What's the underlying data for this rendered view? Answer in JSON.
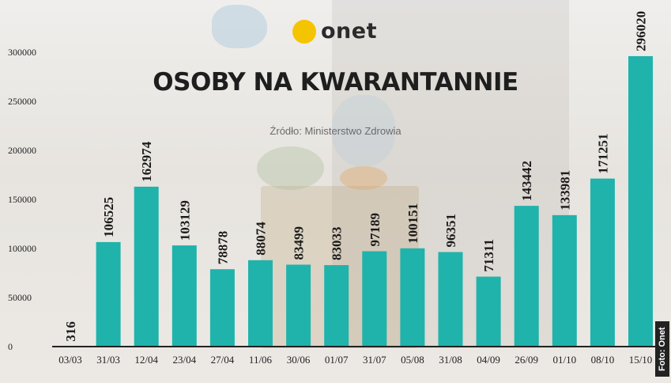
{
  "logo": {
    "text": "onet",
    "icon": "yellow-circle-icon",
    "dot_color": "#f5c400"
  },
  "credit": "Foto: Onet",
  "colors": {
    "bar": "#1fb3ac",
    "axis": "#222222"
  },
  "chart_data": {
    "type": "bar",
    "title": "OSOBY NA KWARANTANNIE",
    "subtitle": "Źródło: Ministerstwo Zdrowia",
    "categories": [
      "03/03",
      "31/03",
      "12/04",
      "23/04",
      "27/04",
      "11/06",
      "30/06",
      "01/07",
      "31/07",
      "05/08",
      "31/08",
      "04/09",
      "26/09",
      "01/10",
      "08/10",
      "15/10"
    ],
    "values": [
      316,
      106525,
      162974,
      103129,
      78878,
      88074,
      83499,
      83033,
      97189,
      100151,
      96351,
      71311,
      143442,
      133981,
      171251,
      296020
    ],
    "yticks": [
      0,
      50000,
      100000,
      150000,
      200000,
      250000,
      300000
    ],
    "ylim": [
      0,
      300000
    ],
    "grid": false,
    "legend": "none",
    "data_labels": true
  }
}
